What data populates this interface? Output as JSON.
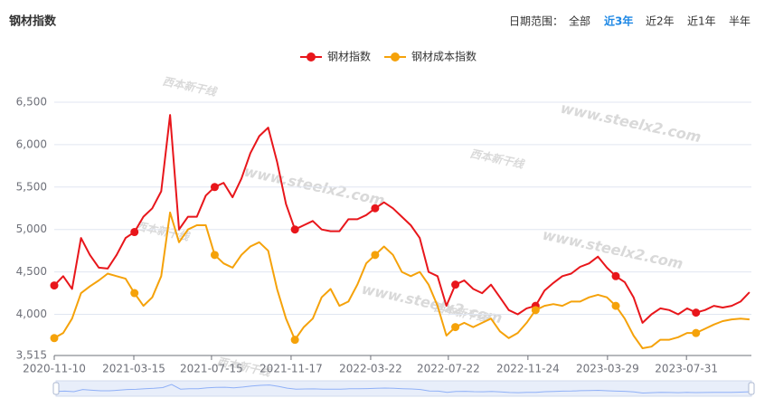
{
  "header": {
    "title": "钢材指数",
    "range_label": "日期范围：",
    "ranges": [
      "全部",
      "近3年",
      "近2年",
      "近1年",
      "半年"
    ],
    "active_range": 1
  },
  "watermarks": [
    "www.steelx2.com",
    "西本新干线"
  ],
  "chart_data": {
    "type": "line",
    "x": [
      "2020-11-10",
      "2020-11-24",
      "2020-12-08",
      "2020-12-22",
      "2021-01-05",
      "2021-01-19",
      "2021-02-02",
      "2021-02-16",
      "2021-03-02",
      "2021-03-16",
      "2021-03-30",
      "2021-04-13",
      "2021-04-27",
      "2021-05-11",
      "2021-05-25",
      "2021-06-08",
      "2021-06-22",
      "2021-07-06",
      "2021-07-20",
      "2021-08-03",
      "2021-08-17",
      "2021-08-31",
      "2021-09-14",
      "2021-09-28",
      "2021-10-12",
      "2021-10-26",
      "2021-11-09",
      "2021-11-23",
      "2021-12-07",
      "2021-12-21",
      "2022-01-04",
      "2022-01-18",
      "2022-02-01",
      "2022-02-15",
      "2022-03-01",
      "2022-03-15",
      "2022-03-29",
      "2022-04-12",
      "2022-04-26",
      "2022-05-10",
      "2022-05-24",
      "2022-06-07",
      "2022-06-21",
      "2022-07-05",
      "2022-07-19",
      "2022-08-02",
      "2022-08-16",
      "2022-08-30",
      "2022-09-13",
      "2022-09-27",
      "2022-10-11",
      "2022-10-25",
      "2022-11-08",
      "2022-11-22",
      "2022-12-06",
      "2022-12-20",
      "2023-01-03",
      "2023-01-17",
      "2023-01-31",
      "2023-02-14",
      "2023-02-28",
      "2023-03-14",
      "2023-03-28",
      "2023-04-11",
      "2023-04-25",
      "2023-05-09",
      "2023-05-23",
      "2023-06-06",
      "2023-06-20",
      "2023-07-04",
      "2023-07-18",
      "2023-08-01",
      "2023-08-15",
      "2023-08-29",
      "2023-09-12",
      "2023-09-26",
      "2023-10-10",
      "2023-10-24",
      "2023-11-07"
    ],
    "series": [
      {
        "name": "钢材指数",
        "color": "#e8161b",
        "values": [
          4340,
          4450,
          4300,
          4900,
          4700,
          4550,
          4540,
          4700,
          4900,
          4970,
          5150,
          5250,
          5450,
          6350,
          5000,
          5150,
          5150,
          5400,
          5500,
          5550,
          5380,
          5600,
          5900,
          6100,
          6200,
          5800,
          5300,
          5000,
          5050,
          5100,
          5000,
          4980,
          4980,
          5120,
          5120,
          5170,
          5250,
          5320,
          5250,
          5150,
          5050,
          4900,
          4500,
          4450,
          4100,
          4350,
          4400,
          4300,
          4250,
          4350,
          4200,
          4050,
          4000,
          4070,
          4100,
          4280,
          4370,
          4450,
          4480,
          4560,
          4600,
          4680,
          4550,
          4450,
          4380,
          4200,
          3900,
          4000,
          4070,
          4050,
          4000,
          4070,
          4020,
          4050,
          4100,
          4080,
          4100,
          4150,
          4260
        ]
      },
      {
        "name": "钢材成本指数",
        "color": "#f5a20a",
        "values": [
          3720,
          3780,
          3950,
          4250,
          4330,
          4400,
          4480,
          4450,
          4420,
          4250,
          4100,
          4200,
          4450,
          5200,
          4850,
          5000,
          5050,
          5050,
          4700,
          4600,
          4550,
          4700,
          4800,
          4850,
          4750,
          4300,
          3950,
          3700,
          3850,
          3950,
          4200,
          4300,
          4100,
          4150,
          4350,
          4600,
          4700,
          4800,
          4700,
          4500,
          4450,
          4500,
          4350,
          4100,
          3750,
          3850,
          3900,
          3850,
          3900,
          3950,
          3800,
          3720,
          3780,
          3900,
          4050,
          4100,
          4120,
          4100,
          4150,
          4150,
          4200,
          4230,
          4200,
          4100,
          3950,
          3750,
          3600,
          3620,
          3700,
          3700,
          3730,
          3780,
          3780,
          3830,
          3880,
          3920,
          3940,
          3950,
          3940
        ]
      }
    ],
    "xlim": [
      "2020-11-10",
      "2023-11-10"
    ],
    "xticks": [
      "2020-11-10",
      "2021-03-15",
      "2021-07-15",
      "2021-11-17",
      "2022-03-22",
      "2022-07-22",
      "2022-11-24",
      "2023-03-29",
      "2023-07-31"
    ],
    "ylim": [
      3515,
      6500
    ],
    "yticks": [
      {
        "value": 3515,
        "label": "3,515"
      },
      {
        "value": 4000,
        "label": "4,000"
      },
      {
        "value": 4500,
        "label": "4,500"
      },
      {
        "value": 5000,
        "label": "5,000"
      },
      {
        "value": 5500,
        "label": "5,500"
      },
      {
        "value": 6000,
        "label": "6,000"
      },
      {
        "value": 6500,
        "label": "6,500"
      }
    ],
    "grid": true
  }
}
